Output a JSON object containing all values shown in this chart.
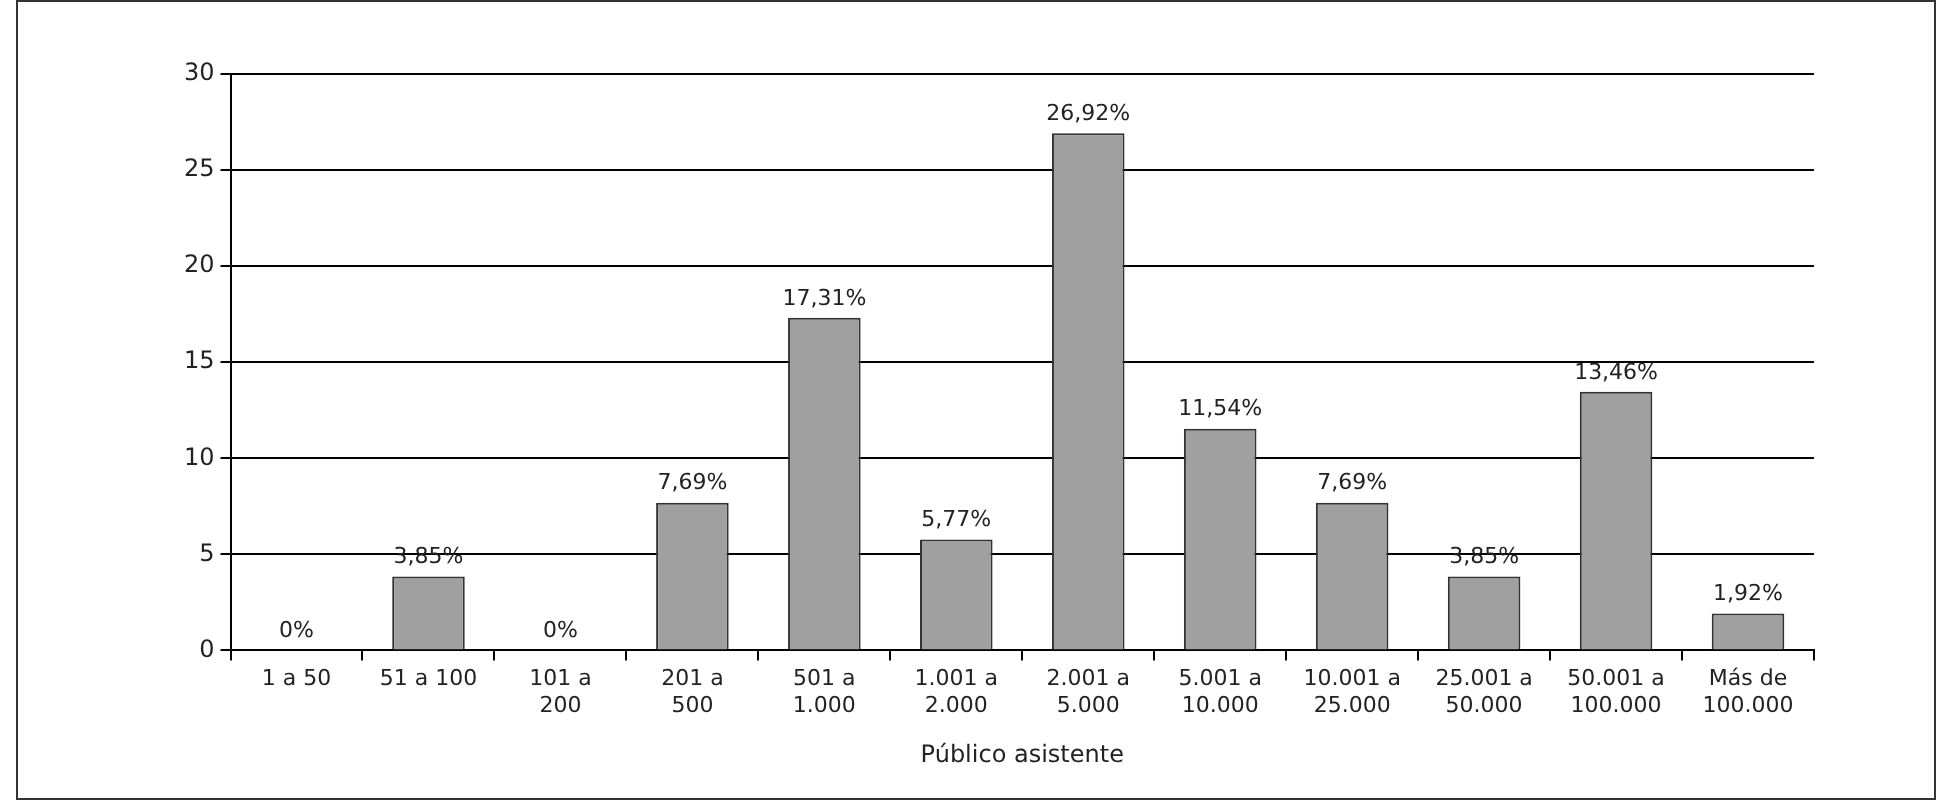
{
  "chart_data": {
    "type": "bar",
    "xlabel": "Público asistente",
    "categories": [
      "1 a 50",
      "51 a 100",
      "101 a 200",
      "201 a 500",
      "501 a 1.000",
      "1.001 a 2.000",
      "2.001 a 5.000",
      "5.001 a 10.000",
      "10.001 a 25.000",
      "25.001 a 50.000",
      "50.001 a 100.000",
      "Más de 100.000"
    ],
    "values": [
      0,
      3.85,
      0,
      7.69,
      17.31,
      5.77,
      26.92,
      11.54,
      7.69,
      3.85,
      13.46,
      1.92
    ],
    "value_labels": [
      "0%",
      "3,85%",
      "0%",
      "7,69%",
      "17,31%",
      "5,77%",
      "26,92%",
      "11,54%",
      "7,69%",
      "3,85%",
      "13,46%",
      "1,92%"
    ],
    "color": "#a0a0a0",
    "ylim": [
      0,
      30
    ],
    "yticks": [
      0,
      5,
      10,
      15,
      20,
      25,
      30
    ],
    "grid": "y",
    "legend": false
  }
}
